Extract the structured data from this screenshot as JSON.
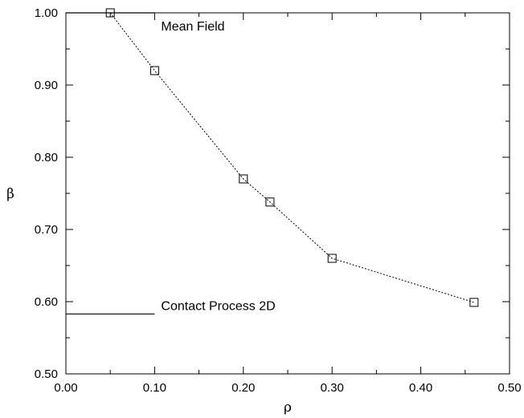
{
  "chart_data": {
    "type": "line",
    "title": "",
    "xlabel": "ρ",
    "ylabel": "β",
    "xlim": [
      0.0,
      0.5
    ],
    "ylim": [
      0.5,
      1.0
    ],
    "x_ticks": [
      "0.00",
      "0.10",
      "0.20",
      "0.30",
      "0.40",
      "0.50"
    ],
    "y_ticks": [
      "0.50",
      "0.60",
      "0.70",
      "0.80",
      "0.90",
      "1.00"
    ],
    "grid": false,
    "series": [
      {
        "x": [
          0.05,
          0.1,
          0.2,
          0.23,
          0.3,
          0.46
        ],
        "y": [
          1.0,
          0.92,
          0.77,
          0.738,
          0.66,
          0.599
        ],
        "marker": "open-square",
        "line_style": "dotted"
      }
    ],
    "reference_lines": [
      {
        "label": "Mean Field",
        "y": 1.0,
        "x_from": 0.0,
        "x_to": 0.1
      },
      {
        "label": "Contact Process 2D",
        "y": 0.583,
        "x_from": 0.0,
        "x_to": 0.1
      }
    ]
  }
}
